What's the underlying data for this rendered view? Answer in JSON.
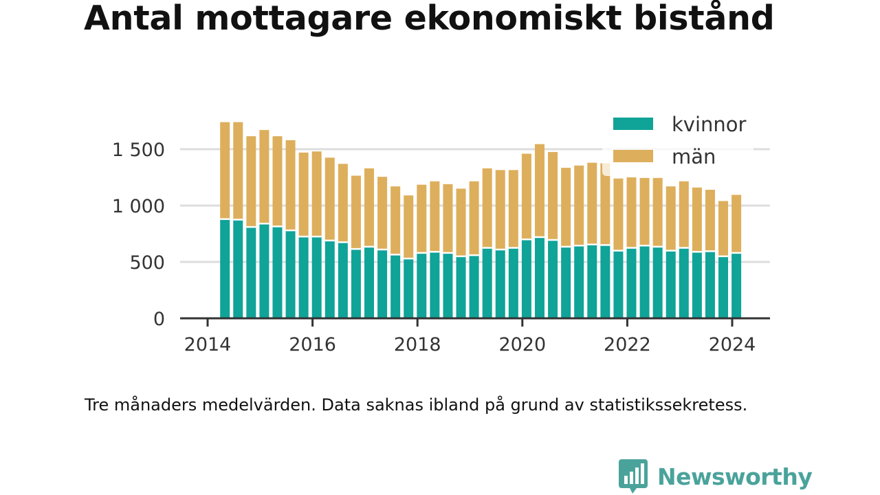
{
  "title": "Antal mottagare ekonomiskt bistånd",
  "note": "Tre månaders medelvärden. Data saknas ibland på grund av statistikssekretess.",
  "logo": {
    "text": "Newsworthy",
    "color": "#4aa39b",
    "icon": "bar-chart-bubble-icon"
  },
  "colors": {
    "kvinnor": "#10a398",
    "man": "#ddaf5c",
    "axis": "#333333",
    "grid": "#dddddd"
  },
  "chart_data": {
    "type": "bar",
    "stacked": true,
    "title": "Antal mottagare ekonomiskt bistånd",
    "xlabel": "",
    "ylabel": "",
    "ylim": [
      0,
      1800
    ],
    "xlim": [
      2014.0,
      2024.25
    ],
    "yticks": [
      0,
      500,
      1000,
      1500
    ],
    "ytick_labels": [
      "0",
      "500",
      "1 000",
      "1 500"
    ],
    "xticks": [
      2014,
      2016,
      2018,
      2020,
      2022,
      2024
    ],
    "xtick_labels": [
      "2014",
      "2016",
      "2018",
      "2020",
      "2022",
      "2024"
    ],
    "grid": true,
    "legend_position": "top-right",
    "x": [
      2014.33,
      2014.58,
      2014.83,
      2015.08,
      2015.33,
      2015.58,
      2015.83,
      2016.08,
      2016.33,
      2016.58,
      2016.83,
      2017.08,
      2017.33,
      2017.58,
      2017.83,
      2018.08,
      2018.33,
      2018.58,
      2018.83,
      2019.08,
      2019.33,
      2019.58,
      2019.83,
      2020.08,
      2020.33,
      2020.58,
      2020.83,
      2021.08,
      2021.33,
      2021.58,
      2021.83,
      2022.08,
      2022.33,
      2022.58,
      2022.83,
      2023.08,
      2023.33,
      2023.58,
      2023.83,
      2024.08
    ],
    "series": [
      {
        "name": "kvinnor",
        "color": "#10a398",
        "values": [
          880,
          875,
          810,
          840,
          815,
          780,
          725,
          725,
          690,
          675,
          615,
          635,
          610,
          565,
          530,
          580,
          590,
          580,
          550,
          560,
          625,
          610,
          625,
          700,
          720,
          695,
          635,
          645,
          655,
          650,
          600,
          625,
          645,
          635,
          600,
          625,
          590,
          595,
          550,
          580
        ]
      },
      {
        "name": "män",
        "color": "#ddaf5c",
        "values": [
          860,
          865,
          805,
          830,
          800,
          800,
          745,
          755,
          735,
          695,
          650,
          695,
          645,
          605,
          560,
          605,
          625,
          610,
          600,
          655,
          705,
          705,
          690,
          760,
          825,
          780,
          700,
          710,
          725,
          725,
          640,
          625,
          600,
          610,
          570,
          590,
          570,
          545,
          490,
          515
        ]
      }
    ]
  }
}
